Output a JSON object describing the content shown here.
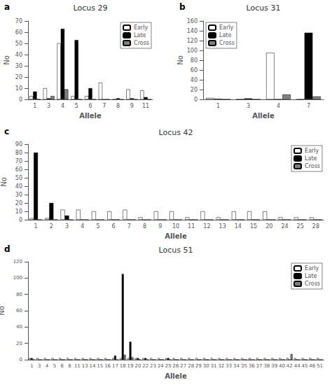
{
  "chart_data": [
    {
      "type": "bar",
      "title": "Locus 29",
      "annotations": [
        "a"
      ],
      "xlabel": "Allele",
      "ylabel": "No",
      "categories": [
        "1",
        "3",
        "4",
        "5",
        "6",
        "7",
        "8",
        "9",
        "11"
      ],
      "series": [
        {
          "name": "Early",
          "color": "white",
          "values": [
            3,
            10,
            50,
            3,
            3,
            15,
            0,
            9,
            8
          ]
        },
        {
          "name": "Late",
          "color": "black",
          "values": [
            7,
            1,
            63,
            53,
            10,
            0,
            1,
            1,
            2
          ]
        },
        {
          "name": "Cross",
          "color": "#808080",
          "values": [
            0,
            3,
            9,
            0,
            0,
            0,
            0,
            0,
            0
          ]
        }
      ],
      "ylim": [
        0,
        70
      ],
      "yticks": [
        0,
        10,
        20,
        30,
        40,
        50,
        60,
        70
      ],
      "grid": false,
      "legend": "upper right"
    },
    {
      "type": "bar",
      "title": "Locus 31",
      "annotations": [
        "b"
      ],
      "xlabel": "Allele",
      "ylabel": "No",
      "categories": [
        "1",
        "3",
        "4",
        "7"
      ],
      "series": [
        {
          "name": "Early",
          "color": "white",
          "values": [
            3,
            0,
            95,
            0
          ]
        },
        {
          "name": "Late",
          "color": "black",
          "values": [
            1,
            2,
            0,
            136
          ]
        },
        {
          "name": "Cross",
          "color": "#808080",
          "values": [
            0,
            0,
            10,
            6
          ]
        }
      ],
      "ylim": [
        0,
        160
      ],
      "yticks": [
        0,
        20,
        40,
        60,
        80,
        100,
        120,
        140,
        160
      ],
      "grid": false,
      "legend": "upper left"
    },
    {
      "type": "bar",
      "title": "Locus 42",
      "annotations": [
        "c"
      ],
      "xlabel": "Allele",
      "ylabel": "No",
      "categories": [
        "1",
        "2",
        "3",
        "4",
        "5",
        "6",
        "7",
        "8",
        "9",
        "10",
        "11",
        "12",
        "13",
        "14",
        "15",
        "20",
        "24",
        "25",
        "28"
      ],
      "series": [
        {
          "name": "Early",
          "color": "white",
          "values": [
            2,
            2,
            12,
            12,
            10,
            10,
            12,
            3,
            10,
            10,
            3,
            10,
            3,
            10,
            10,
            10,
            3,
            3,
            3
          ]
        },
        {
          "name": "Late",
          "color": "black",
          "values": [
            80,
            20,
            5,
            0,
            0,
            0,
            0,
            0,
            0,
            0,
            0,
            0,
            0,
            0,
            0,
            0,
            0,
            0,
            0
          ]
        },
        {
          "name": "Cross",
          "color": "#808080",
          "values": [
            0,
            0,
            0,
            0,
            0,
            0,
            0,
            0,
            0,
            0,
            0,
            0,
            0,
            0,
            0,
            0,
            0,
            0,
            0
          ]
        }
      ],
      "ylim": [
        0,
        90
      ],
      "yticks": [
        0,
        10,
        20,
        30,
        40,
        50,
        60,
        70,
        80,
        90
      ],
      "grid": false,
      "legend": "upper right"
    },
    {
      "type": "bar",
      "title": "Locus 51",
      "annotations": [
        "d"
      ],
      "xlabel": "Allele",
      "ylabel": "No",
      "categories": [
        "1",
        "3",
        "4",
        "5",
        "6",
        "8",
        "11",
        "13",
        "14",
        "15",
        "16",
        "17",
        "18",
        "19",
        "20",
        "22",
        "23",
        "24",
        "25",
        "26",
        "27",
        "28",
        "29",
        "30",
        "31",
        "32",
        "33",
        "34",
        "35",
        "36",
        "37",
        "38",
        "39",
        "40",
        "42",
        "44",
        "45",
        "46",
        "51"
      ],
      "series": [
        {
          "name": "Early",
          "color": "white",
          "values": [
            2,
            2,
            2,
            2,
            2,
            2,
            2,
            2,
            2,
            2,
            2,
            2,
            2,
            2,
            2,
            2,
            2,
            2,
            2,
            2,
            2,
            2,
            2,
            2,
            2,
            2,
            2,
            2,
            2,
            2,
            2,
            2,
            2,
            2,
            2,
            2,
            2,
            2,
            2
          ]
        },
        {
          "name": "Late",
          "color": "black",
          "values": [
            2,
            0,
            0,
            0,
            0,
            0,
            0,
            0,
            0,
            0,
            0,
            5,
            105,
            22,
            2,
            2,
            0,
            0,
            2,
            0,
            0,
            0,
            0,
            0,
            0,
            0,
            0,
            0,
            0,
            0,
            0,
            0,
            0,
            0,
            0,
            0,
            0,
            0,
            0
          ]
        },
        {
          "name": "Cross",
          "color": "#808080",
          "values": [
            0,
            0,
            0,
            0,
            0,
            0,
            0,
            0,
            0,
            0,
            0,
            0,
            6,
            3,
            0,
            0,
            0,
            0,
            0,
            0,
            0,
            0,
            0,
            0,
            0,
            0,
            0,
            0,
            0,
            0,
            0,
            0,
            0,
            0,
            7,
            0,
            0,
            0,
            0
          ]
        }
      ],
      "ylim": [
        0,
        120
      ],
      "yticks": [
        0,
        20,
        40,
        60,
        80,
        100,
        120
      ],
      "grid": false,
      "legend": "upper right"
    }
  ]
}
